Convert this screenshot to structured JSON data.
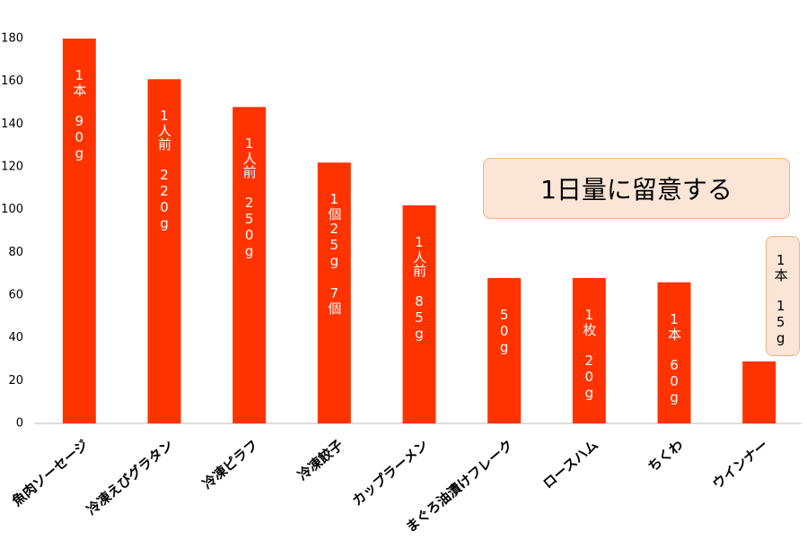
{
  "chart_data": {
    "type": "bar",
    "categories": [
      "魚肉ソーセージ",
      "冷凍えびグラタン",
      "冷凍ピラフ",
      "冷凍餃子",
      "カップラーメン",
      "まぐろ油漬けフレーク",
      "ロースハム",
      "ちくわ",
      "ウインナー"
    ],
    "values": [
      180,
      161,
      148,
      122,
      102,
      68,
      68,
      66,
      29
    ],
    "bar_notes": [
      "1本 90g",
      "1人前 220g",
      "1人前 250g",
      "1個25g 7個",
      "1人前 85g",
      "50g",
      "1枚 20g",
      "1本 60g",
      "1本 15g"
    ],
    "color": "#ff3300",
    "ylim": [
      0,
      180
    ],
    "yticks": [
      0,
      20,
      40,
      60,
      80,
      100,
      120,
      140,
      160,
      180
    ],
    "annotation": "1日量に留意する"
  }
}
